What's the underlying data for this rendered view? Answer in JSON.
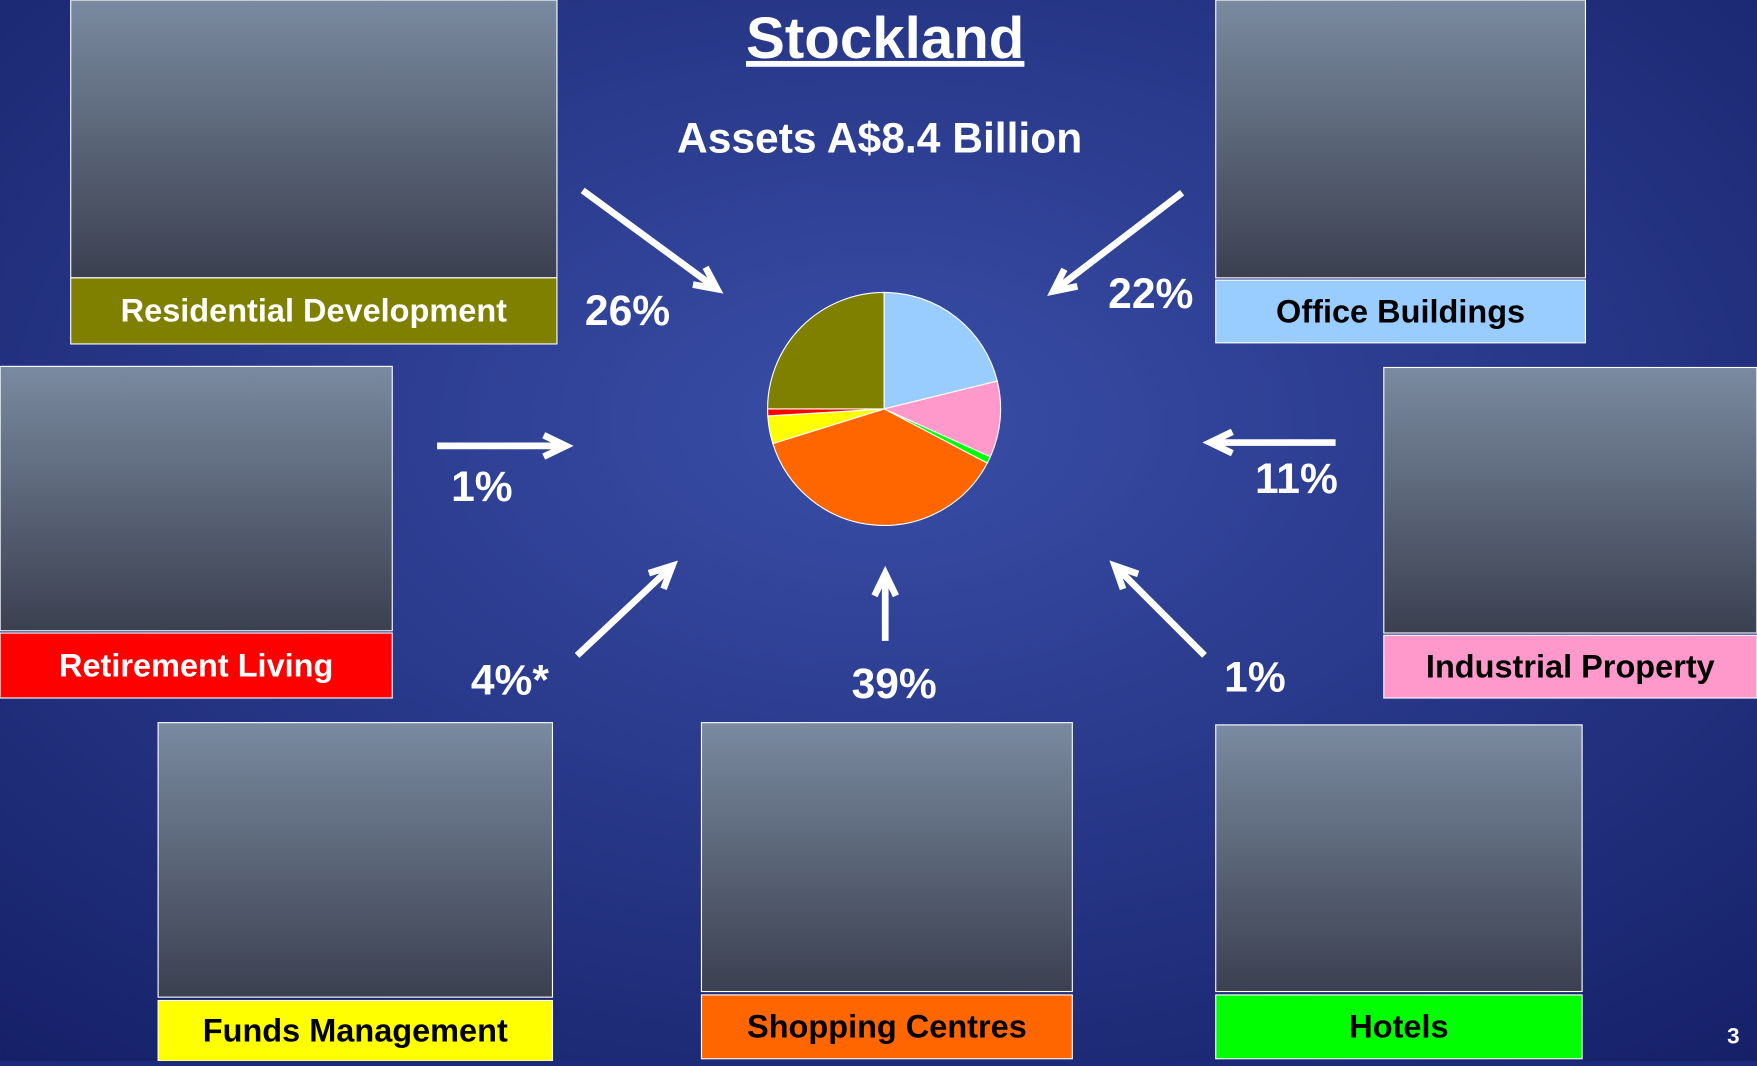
{
  "title": "Stockland",
  "subtitle": "Assets A$8.4 Billion",
  "page_number": "3",
  "chart_data": {
    "type": "pie",
    "categories": [
      "Office Buildings",
      "Industrial Property",
      "Hotels",
      "Shopping Centres",
      "Funds Management",
      "Retirement Living",
      "Residential Development"
    ],
    "values": [
      22,
      11,
      1,
      39,
      4,
      1,
      26
    ],
    "value_labels": [
      "22%",
      "11%",
      "1%",
      "39%",
      "4%*",
      "1%",
      "26%"
    ],
    "colors": [
      "#99ccff",
      "#ff99cc",
      "#00ff00",
      "#ff6600",
      "#ffff00",
      "#ff0000",
      "#808000"
    ]
  }
}
